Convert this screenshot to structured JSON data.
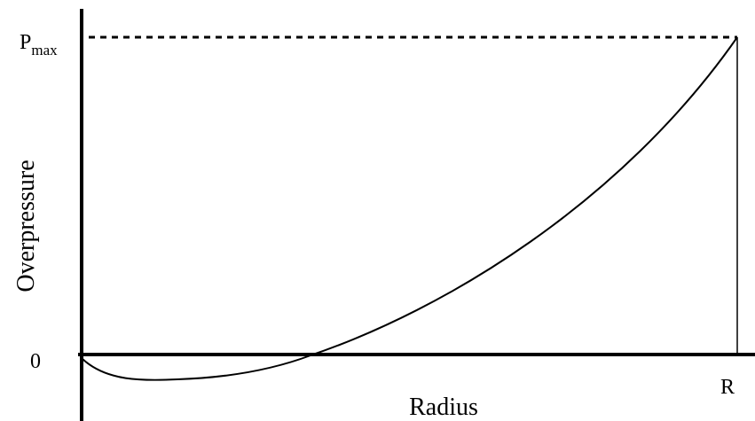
{
  "diagram": {
    "y_axis_label": "Overpressure",
    "x_axis_label": "Radius",
    "y_top_label": {
      "main": "P",
      "subscript": "max"
    },
    "y_zero_label": "0",
    "x_end_label": "R"
  }
}
